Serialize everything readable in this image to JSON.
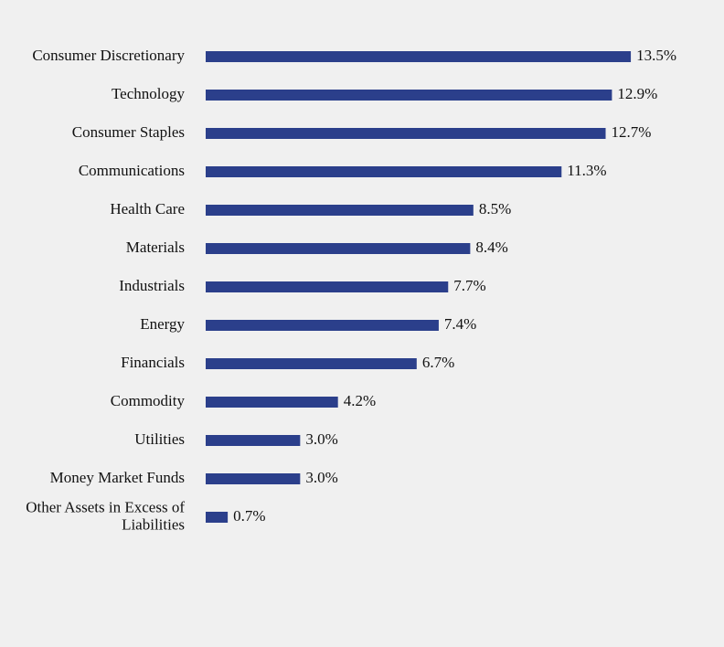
{
  "chart_data": {
    "type": "bar",
    "orientation": "horizontal",
    "categories": [
      [
        "Consumer Discretionary"
      ],
      [
        "Technology"
      ],
      [
        "Consumer Staples"
      ],
      [
        "Communications"
      ],
      [
        "Health Care"
      ],
      [
        "Materials"
      ],
      [
        "Industrials"
      ],
      [
        "Energy"
      ],
      [
        "Financials"
      ],
      [
        "Commodity"
      ],
      [
        "Utilities"
      ],
      [
        "Money Market Funds"
      ],
      [
        "Other Assets in Excess of",
        "Liabilities"
      ]
    ],
    "values": [
      13.5,
      12.9,
      12.7,
      11.3,
      8.5,
      8.4,
      7.7,
      7.4,
      6.7,
      4.2,
      3.0,
      3.0,
      0.7
    ],
    "value_labels": [
      "13.5%",
      "12.9%",
      "12.7%",
      "11.3%",
      "8.5%",
      "8.4%",
      "7.7%",
      "7.4%",
      "6.7%",
      "4.2%",
      "3.0%",
      "3.0%",
      "0.7%"
    ],
    "bar_color": "#2b3f8b",
    "grid": false,
    "legend": "none"
  }
}
